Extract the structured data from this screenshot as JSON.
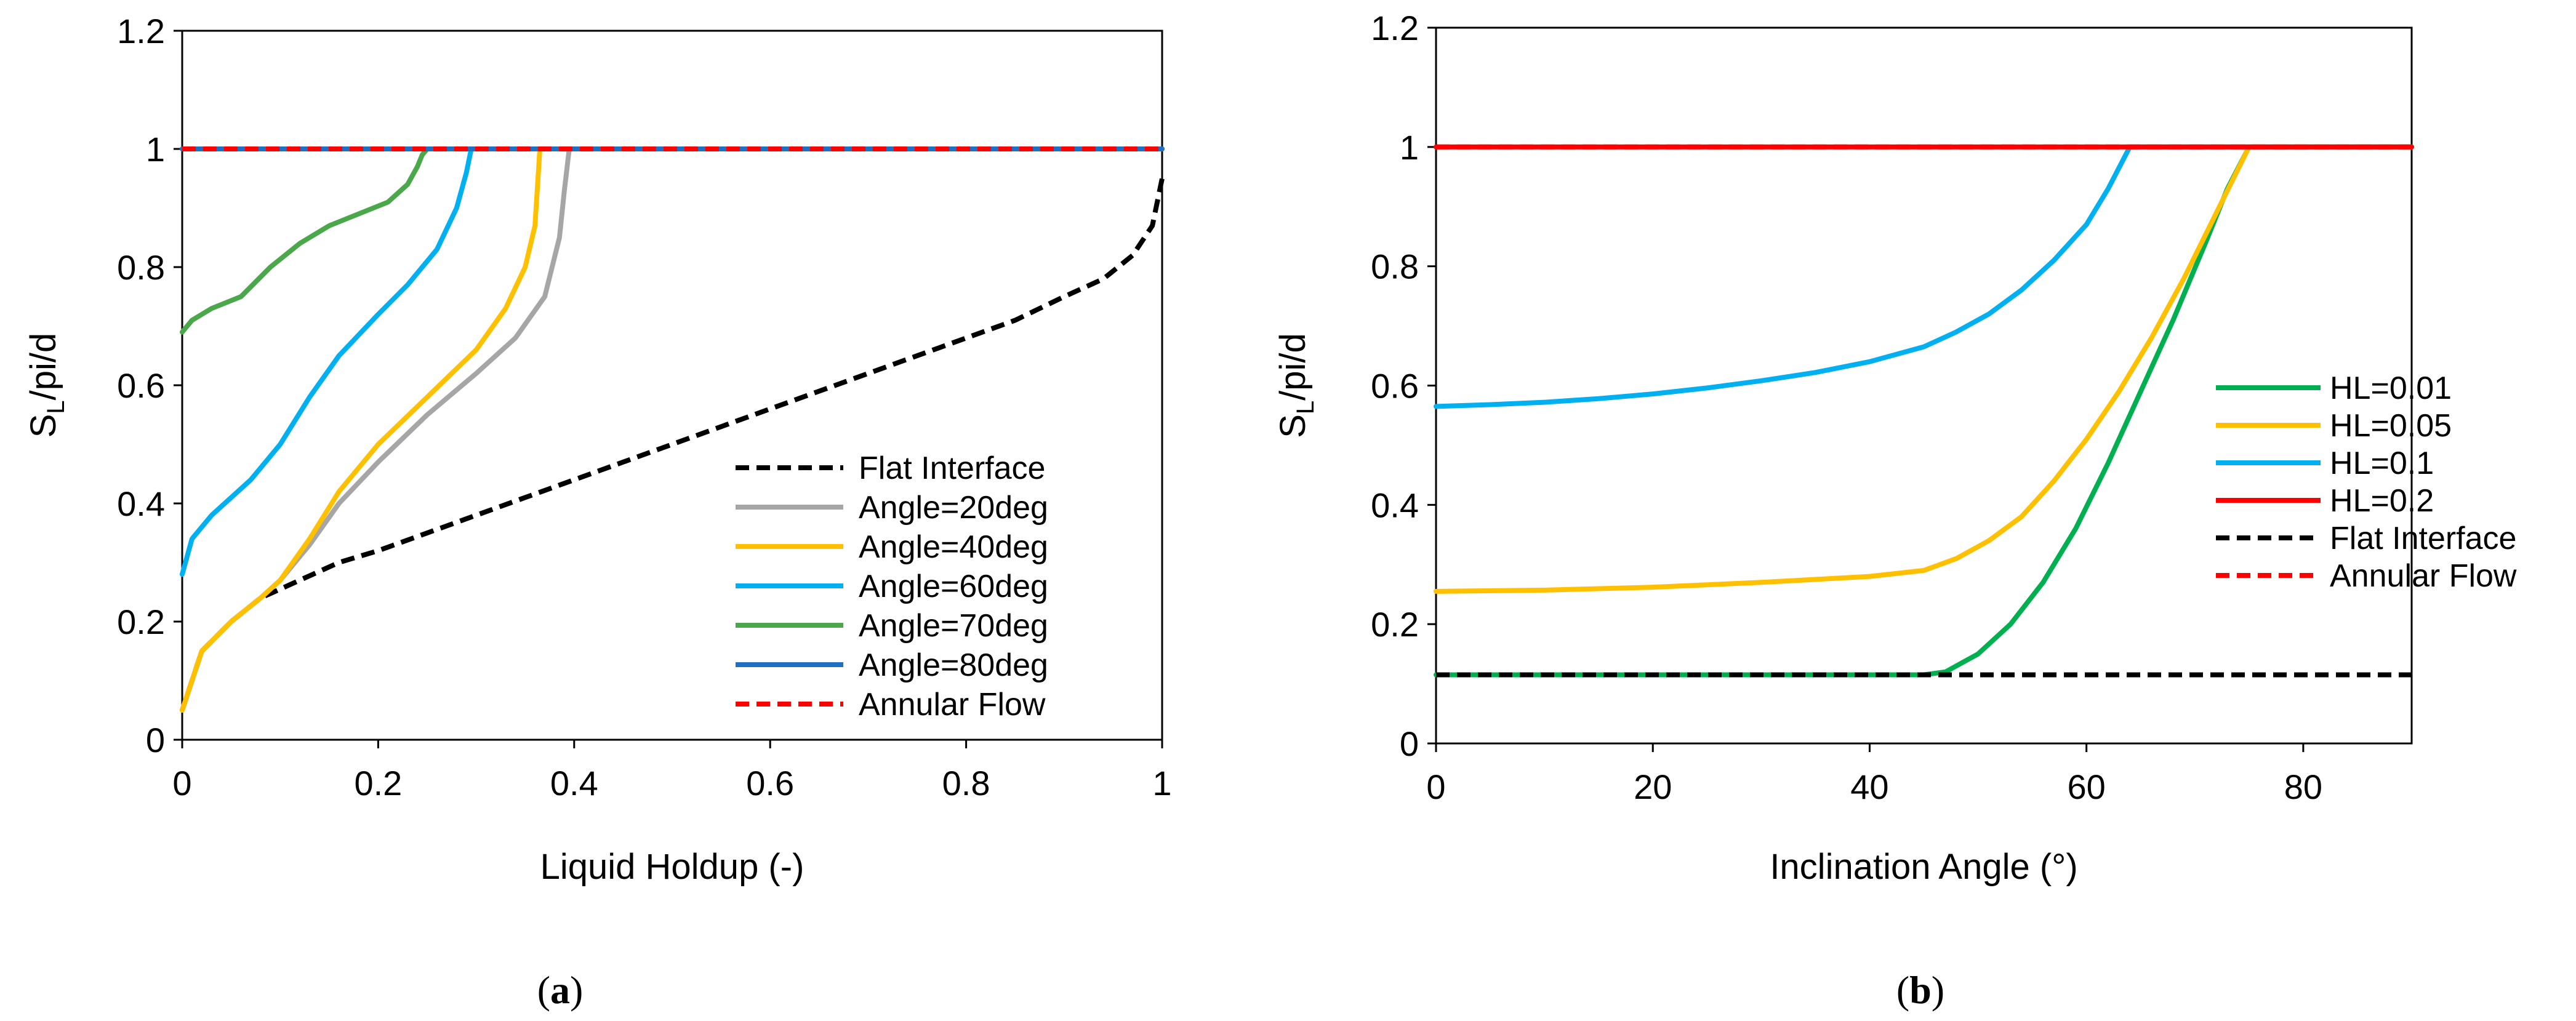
{
  "chart_data": [
    {
      "type": "line",
      "caption_open": "(",
      "caption_letter": "a",
      "caption_close": ")",
      "xlabel": "Liquid Holdup  (-)",
      "ylabel_main": "S",
      "ylabel_sub": "L",
      "ylabel_rest": "/pi/d",
      "xlim": [
        0,
        1
      ],
      "ylim": [
        0,
        1.2
      ],
      "x_ticks": [
        0,
        0.2,
        0.4,
        0.6,
        0.8,
        1
      ],
      "x_tick_labels": [
        "0",
        "0.2",
        "0.4",
        "0.6",
        "0.8",
        "1"
      ],
      "y_ticks": [
        0,
        0.2,
        0.4,
        0.6,
        0.8,
        1,
        1.2
      ],
      "y_tick_labels": [
        "0",
        "0.2",
        "0.4",
        "0.6",
        "0.8",
        "1",
        "1.2"
      ],
      "legend_position": "lower-right",
      "series": [
        {
          "name": "Flat Interface",
          "color": "#000000",
          "dash": true,
          "x": [
            0,
            0.02,
            0.05,
            0.08,
            0.12,
            0.16,
            0.2,
            0.25,
            0.3,
            0.35,
            0.4,
            0.45,
            0.5,
            0.55,
            0.6,
            0.65,
            0.7,
            0.75,
            0.8,
            0.85,
            0.9,
            0.94,
            0.97,
            0.99,
            1.0
          ],
          "y": [
            0.05,
            0.15,
            0.2,
            0.24,
            0.27,
            0.3,
            0.32,
            0.35,
            0.38,
            0.41,
            0.44,
            0.47,
            0.5,
            0.53,
            0.56,
            0.59,
            0.62,
            0.65,
            0.68,
            0.71,
            0.75,
            0.78,
            0.82,
            0.87,
            0.95
          ]
        },
        {
          "name": "Angle=20deg",
          "color": "#a6a6a6",
          "dash": false,
          "x": [
            0,
            0.02,
            0.05,
            0.08,
            0.1,
            0.13,
            0.16,
            0.2,
            0.25,
            0.3,
            0.34,
            0.37,
            0.385,
            0.39,
            0.395,
            1.0
          ],
          "y": [
            0.05,
            0.15,
            0.2,
            0.24,
            0.27,
            0.33,
            0.4,
            0.47,
            0.55,
            0.62,
            0.68,
            0.75,
            0.85,
            0.93,
            1.0,
            1.0
          ]
        },
        {
          "name": "Angle=40deg",
          "color": "#ffc000",
          "dash": false,
          "x": [
            0,
            0.02,
            0.05,
            0.08,
            0.1,
            0.13,
            0.16,
            0.2,
            0.25,
            0.3,
            0.33,
            0.35,
            0.36,
            0.365,
            1.0
          ],
          "y": [
            0.05,
            0.15,
            0.2,
            0.24,
            0.27,
            0.34,
            0.42,
            0.5,
            0.58,
            0.66,
            0.73,
            0.8,
            0.87,
            1.0,
            1.0
          ]
        },
        {
          "name": "Angle=60deg",
          "color": "#00b0f0",
          "dash": false,
          "x": [
            0,
            0.01,
            0.03,
            0.05,
            0.07,
            0.1,
            0.13,
            0.16,
            0.2,
            0.23,
            0.26,
            0.28,
            0.29,
            0.295,
            1.0
          ],
          "y": [
            0.28,
            0.34,
            0.38,
            0.41,
            0.44,
            0.5,
            0.58,
            0.65,
            0.72,
            0.77,
            0.83,
            0.9,
            0.96,
            1.0,
            1.0
          ]
        },
        {
          "name": "Angle=70deg",
          "color": "#4aa84a",
          "dash": false,
          "x": [
            0,
            0.01,
            0.03,
            0.06,
            0.09,
            0.12,
            0.15,
            0.18,
            0.21,
            0.23,
            0.24,
            0.245,
            0.25,
            1.0
          ],
          "y": [
            0.69,
            0.71,
            0.73,
            0.75,
            0.8,
            0.84,
            0.87,
            0.89,
            0.91,
            0.94,
            0.97,
            0.99,
            1.0,
            1.0
          ]
        },
        {
          "name": "Angle=80deg",
          "color": "#1f6fc2",
          "dash": false,
          "x": [
            0,
            1.0
          ],
          "y": [
            1.0,
            1.0
          ]
        },
        {
          "name": "Annular Flow",
          "color": "#ff0000",
          "dash": true,
          "x": [
            0,
            1.0
          ],
          "y": [
            1.0,
            1.0
          ]
        }
      ]
    },
    {
      "type": "line",
      "caption_open": "(",
      "caption_letter": "b",
      "caption_close": ")",
      "xlabel": "Inclination Angle  (°)",
      "ylabel_main": "S",
      "ylabel_sub": "L",
      "ylabel_rest": "/pi/d",
      "xlim": [
        0,
        90
      ],
      "ylim": [
        0,
        1.2
      ],
      "x_ticks": [
        0,
        20,
        40,
        60,
        80
      ],
      "x_tick_labels": [
        "0",
        "20",
        "40",
        "60",
        "80"
      ],
      "y_ticks": [
        0,
        0.2,
        0.4,
        0.6,
        0.8,
        1,
        1.2
      ],
      "y_tick_labels": [
        "0",
        "0.2",
        "0.4",
        "0.6",
        "0.8",
        "1",
        "1.2"
      ],
      "legend_position": "right",
      "series": [
        {
          "name": "HL=0.01",
          "color": "#00b050",
          "dash": false,
          "x": [
            0,
            45,
            47,
            50,
            53,
            56,
            59,
            62,
            65,
            68,
            71,
            73,
            75,
            90
          ],
          "y": [
            0.115,
            0.115,
            0.12,
            0.15,
            0.2,
            0.27,
            0.36,
            0.47,
            0.59,
            0.71,
            0.84,
            0.93,
            1.0,
            1.0
          ]
        },
        {
          "name": "HL=0.05",
          "color": "#ffc000",
          "dash": false,
          "x": [
            0,
            10,
            20,
            30,
            40,
            45,
            48,
            51,
            54,
            57,
            60,
            63,
            66,
            69,
            72,
            75,
            90
          ],
          "y": [
            0.255,
            0.257,
            0.262,
            0.27,
            0.28,
            0.29,
            0.31,
            0.34,
            0.38,
            0.44,
            0.51,
            0.59,
            0.68,
            0.78,
            0.89,
            1.0,
            1.0
          ]
        },
        {
          "name": "HL=0.1",
          "color": "#00b0f0",
          "dash": false,
          "x": [
            0,
            5,
            10,
            15,
            20,
            25,
            30,
            35,
            40,
            45,
            48,
            51,
            54,
            57,
            60,
            62,
            64,
            90
          ],
          "y": [
            0.565,
            0.568,
            0.572,
            0.578,
            0.586,
            0.596,
            0.608,
            0.622,
            0.64,
            0.665,
            0.69,
            0.72,
            0.76,
            0.81,
            0.87,
            0.93,
            1.0,
            1.0
          ]
        },
        {
          "name": "HL=0.2",
          "color": "#ff0000",
          "dash": false,
          "x": [
            0,
            90
          ],
          "y": [
            1.0,
            1.0
          ]
        },
        {
          "name": "Flat Interface",
          "color": "#000000",
          "dash": true,
          "x": [
            0,
            90
          ],
          "y": [
            0.115,
            0.115
          ]
        },
        {
          "name": "Annular Flow",
          "color": "#ff0000",
          "dash": true,
          "x": [
            0,
            90
          ],
          "y": [
            1.0,
            1.0
          ]
        }
      ]
    }
  ]
}
